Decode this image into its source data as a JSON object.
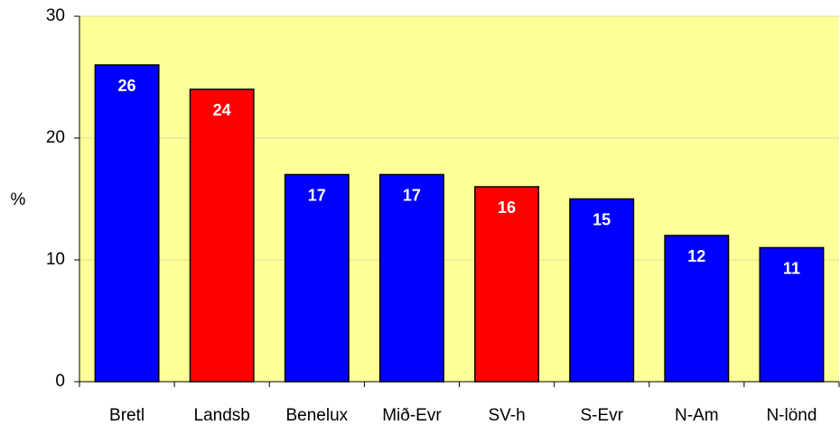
{
  "chart_data": {
    "type": "bar",
    "y_label": "%",
    "categories": [
      "Bretl",
      "Landsb",
      "Benelux",
      "Mið-Evr",
      "SV-h",
      "S-Evr",
      "N-Am",
      "N-lönd"
    ],
    "values": [
      26,
      24,
      17,
      17,
      16,
      15,
      12,
      11
    ],
    "colors": [
      "#0000ff",
      "#ff0000",
      "#0000ff",
      "#0000ff",
      "#ff0000",
      "#0000ff",
      "#0000ff",
      "#0000ff"
    ],
    "ylim": [
      0,
      30
    ],
    "yticks": [
      0,
      10,
      20,
      30
    ],
    "grid": true,
    "background": "#ffff99"
  }
}
